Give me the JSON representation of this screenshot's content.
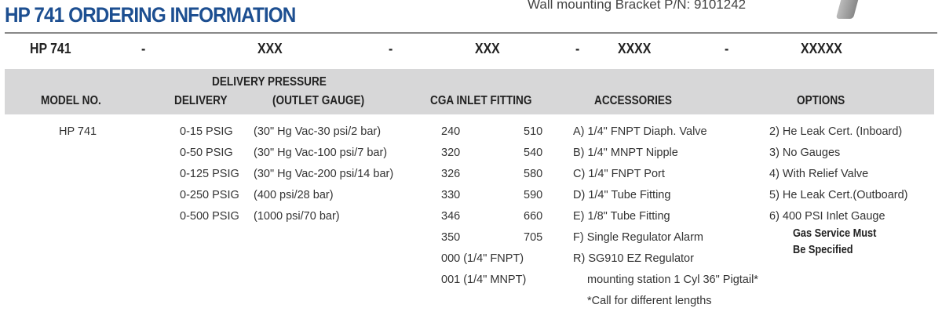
{
  "title": "HP 741 ORDERING INFORMATION",
  "bracket": "Wall mounting Bracket P/N: 9101242",
  "code": {
    "model": "HP 741",
    "dash": "-",
    "seg1": "XXX",
    "seg2": "XXX",
    "seg3": "XXXX",
    "seg4": "XXXXX"
  },
  "headers": {
    "model": "MODEL NO.",
    "delivery_pressure": "DELIVERY PRESSURE",
    "delivery": "DELIVERY",
    "outlet_gauge": "(OUTLET GAUGE)",
    "cga": "CGA INLET FITTING",
    "accessories": "ACCESSORIES",
    "options": "OPTIONS"
  },
  "model": "HP 741",
  "delivery": [
    "0-15 PSIG",
    "0-50 PSIG",
    "0-125 PSIG",
    "0-250 PSIG",
    "0-500 PSIG"
  ],
  "gauge": [
    "(30\" Hg Vac-30 psi/2 bar)",
    "(30\" Hg Vac-100 psi/7 bar)",
    "(30\" Hg Vac-200 psi/14 bar)",
    "(400 psi/28 bar)",
    "(1000 psi/70 bar)"
  ],
  "cga1": [
    "240",
    "320",
    "326",
    "330",
    "346",
    "350",
    "000 (1/4\" FNPT)",
    "001 (1/4\" MNPT)"
  ],
  "cga2": [
    "510",
    "540",
    "580",
    "590",
    "660",
    "705"
  ],
  "accessories": [
    "A) 1/4\" FNPT Diaph. Valve",
    "B) 1/4\" MNPT Nipple",
    "C) 1/4\" FNPT Port",
    "D) 1/4\" Tube Fitting",
    "E) 1/8\" Tube Fitting",
    "F) Single Regulator Alarm",
    "R) SG910 EZ Regulator",
    "mounting station 1 Cyl 36\" Pigtail*",
    "*Call for different lengths"
  ],
  "options": [
    "2) He Leak Cert. (Inboard)",
    "3) No Gauges",
    "4) With Relief Valve",
    "5) He Leak Cert.(Outboard)",
    "6) 400 PSI Inlet Gauge"
  ],
  "options_note": [
    "Gas Service Must",
    "Be Specified"
  ]
}
